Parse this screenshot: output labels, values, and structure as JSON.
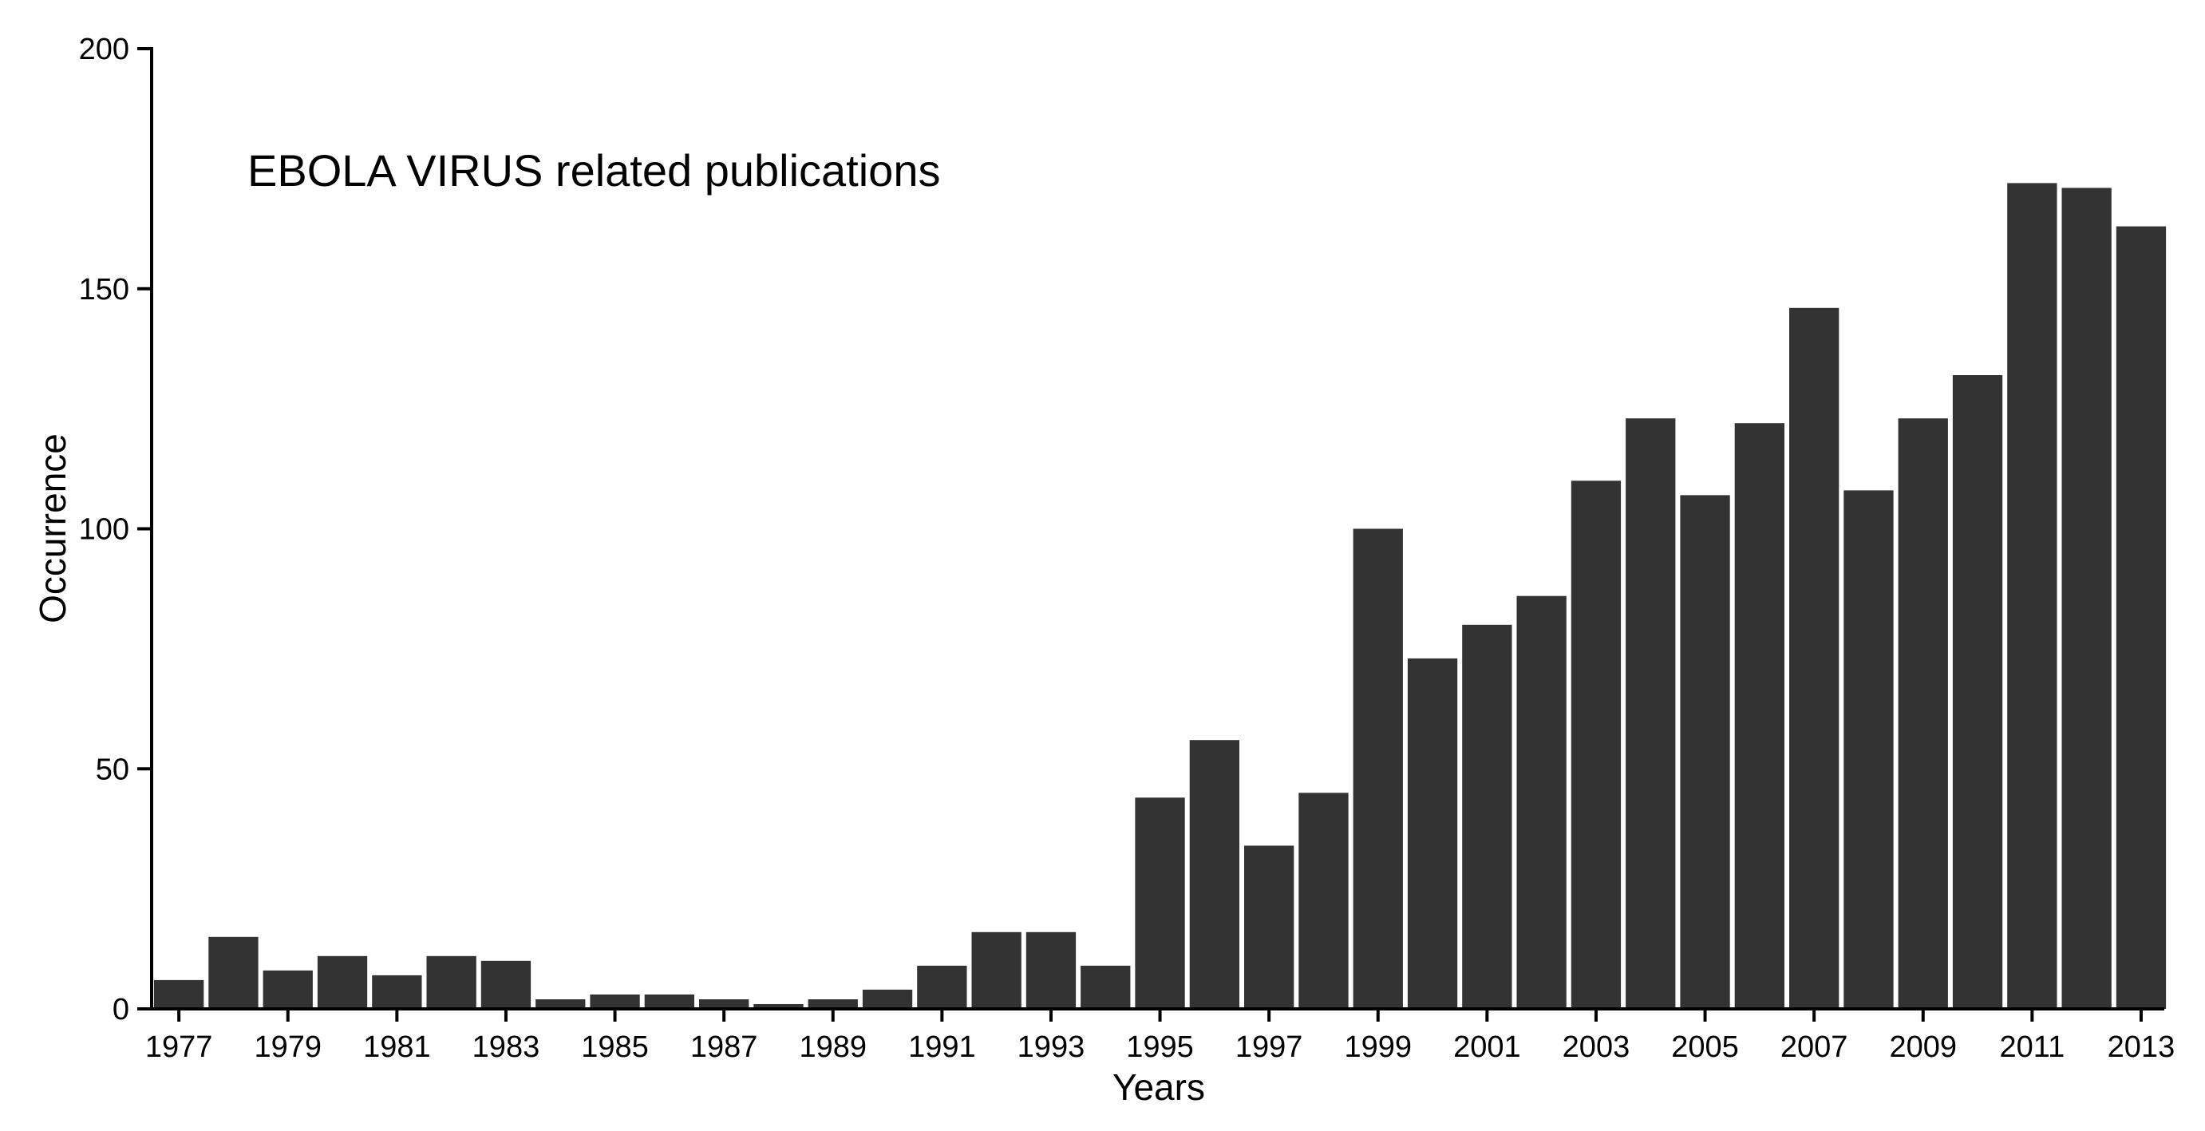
{
  "chart_data": {
    "type": "bar",
    "title": "EBOLA VIRUS related publications",
    "xlabel": "Years",
    "ylabel": "Occurrence",
    "ylim": [
      0,
      200
    ],
    "yticks": [
      "0",
      "50",
      "100",
      "150",
      "200"
    ],
    "xtick_labels": [
      "1977",
      "1979",
      "1981",
      "1983",
      "1985",
      "1987",
      "1989",
      "1991",
      "1993",
      "1995",
      "1997",
      "1999",
      "2001",
      "2003",
      "2005",
      "2007",
      "2009",
      "2011",
      "2013"
    ],
    "categories": [
      "1977",
      "1978",
      "1979",
      "1980",
      "1981",
      "1982",
      "1983",
      "1984",
      "1985",
      "1986",
      "1987",
      "1988",
      "1989",
      "1990",
      "1991",
      "1992",
      "1993",
      "1994",
      "1995",
      "1996",
      "1997",
      "1998",
      "1999",
      "2000",
      "2001",
      "2002",
      "2003",
      "2004",
      "2005",
      "2006",
      "2007",
      "2008",
      "2009",
      "2010",
      "2011",
      "2012",
      "2013"
    ],
    "values": [
      6,
      15,
      8,
      11,
      7,
      11,
      10,
      2,
      3,
      3,
      2,
      1,
      2,
      4,
      9,
      16,
      16,
      9,
      44,
      56,
      34,
      45,
      100,
      73,
      80,
      86,
      110,
      123,
      107,
      122,
      146,
      108,
      123,
      132,
      172,
      171,
      163
    ],
    "bar_color": "#333333",
    "grid": false,
    "legend": "none"
  }
}
